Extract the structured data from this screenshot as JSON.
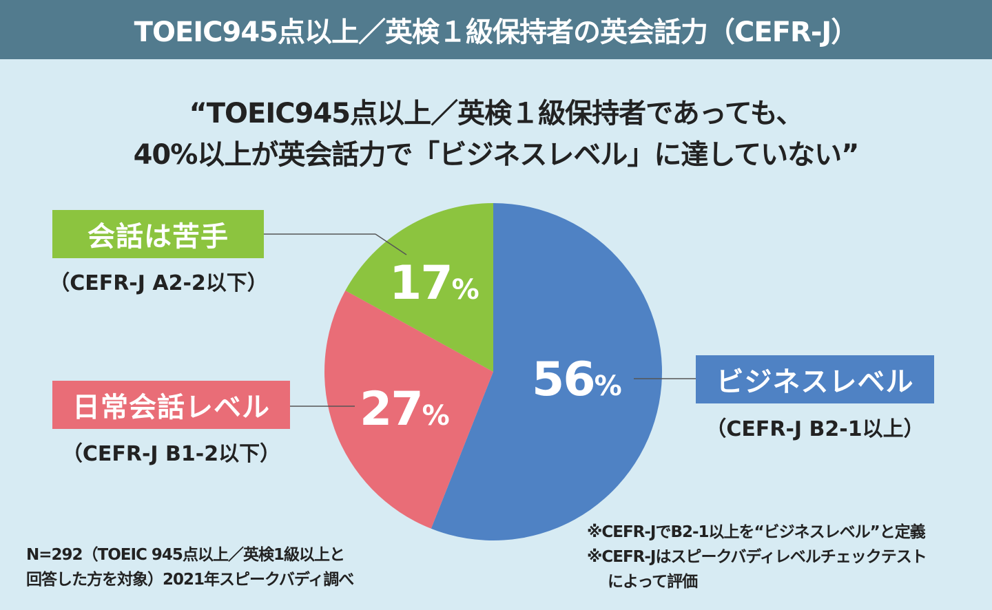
{
  "header": {
    "title": "TOEIC945点以上／英検１級保持者の英会話力（CEFR-J）"
  },
  "headline": {
    "line1": "“TOEIC945点以上／英検１級保持者であっても、",
    "line2": "40%以上が英会話力で「ビジネスレベル」に達していない”"
  },
  "chart_data": {
    "type": "pie",
    "title": "TOEIC945点以上／英検１級保持者の英会話力（CEFR-J）",
    "start": "12 o'clock, clockwise",
    "slices": [
      {
        "label": "ビジネスレベル",
        "sublabel": "（CEFR-J B2-1以上）",
        "value": 56,
        "value_text": "56",
        "color": "#4f82c4"
      },
      {
        "label": "日常会話レベル",
        "sublabel": "（CEFR-J B1-2以下）",
        "value": 27,
        "value_text": "27",
        "color": "#e96d77"
      },
      {
        "label": "会話は苦手",
        "sublabel": "（CEFR-J A2-2以下）",
        "value": 17,
        "value_text": "17",
        "color": "#8cc43f"
      }
    ],
    "unit": "%"
  },
  "notes": {
    "sample_line1": "N=292（TOEIC 945点以上／英検1級以上と",
    "sample_line2": "回答した方を対象）2021年スピークバディ調べ",
    "def1": "※CEFR-JでB2-1以上を“ビジネスレベル”と定義",
    "def2": "※CEFR-Jはスピークバディレベルチェックテスト",
    "def3": "によって評価"
  }
}
